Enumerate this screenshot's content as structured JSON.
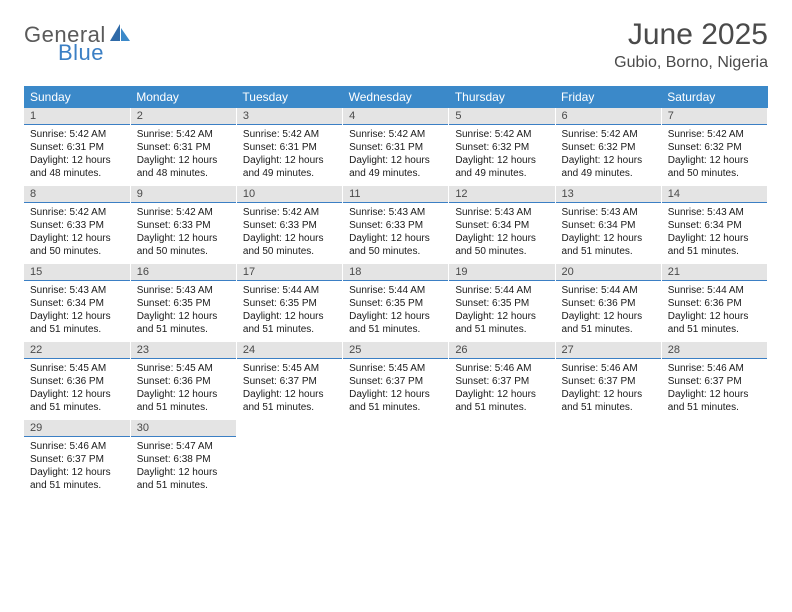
{
  "logo": {
    "general": "General",
    "blue": "Blue"
  },
  "title": "June 2025",
  "location": "Gubio, Borno, Nigeria",
  "colors": {
    "header_bg": "#3b89c9",
    "header_text": "#ffffff",
    "daynum_bg": "#e4e4e4",
    "daynum_border": "#3b7fc4",
    "text": "#1a1a1a",
    "logo_gray": "#5a5a5a",
    "logo_blue": "#3b7fc4"
  },
  "fonts": {
    "title_size": 30,
    "location_size": 16,
    "header_size": 12,
    "body_size": 10
  },
  "weekdays": [
    "Sunday",
    "Monday",
    "Tuesday",
    "Wednesday",
    "Thursday",
    "Friday",
    "Saturday"
  ],
  "grid": {
    "rows": 5,
    "cols": 7,
    "first_day_col": 0,
    "days_in_month": 30
  },
  "days": [
    {
      "n": "1",
      "sunrise": "5:42 AM",
      "sunset": "6:31 PM",
      "daylight": "12 hours and 48 minutes."
    },
    {
      "n": "2",
      "sunrise": "5:42 AM",
      "sunset": "6:31 PM",
      "daylight": "12 hours and 48 minutes."
    },
    {
      "n": "3",
      "sunrise": "5:42 AM",
      "sunset": "6:31 PM",
      "daylight": "12 hours and 49 minutes."
    },
    {
      "n": "4",
      "sunrise": "5:42 AM",
      "sunset": "6:31 PM",
      "daylight": "12 hours and 49 minutes."
    },
    {
      "n": "5",
      "sunrise": "5:42 AM",
      "sunset": "6:32 PM",
      "daylight": "12 hours and 49 minutes."
    },
    {
      "n": "6",
      "sunrise": "5:42 AM",
      "sunset": "6:32 PM",
      "daylight": "12 hours and 49 minutes."
    },
    {
      "n": "7",
      "sunrise": "5:42 AM",
      "sunset": "6:32 PM",
      "daylight": "12 hours and 50 minutes."
    },
    {
      "n": "8",
      "sunrise": "5:42 AM",
      "sunset": "6:33 PM",
      "daylight": "12 hours and 50 minutes."
    },
    {
      "n": "9",
      "sunrise": "5:42 AM",
      "sunset": "6:33 PM",
      "daylight": "12 hours and 50 minutes."
    },
    {
      "n": "10",
      "sunrise": "5:42 AM",
      "sunset": "6:33 PM",
      "daylight": "12 hours and 50 minutes."
    },
    {
      "n": "11",
      "sunrise": "5:43 AM",
      "sunset": "6:33 PM",
      "daylight": "12 hours and 50 minutes."
    },
    {
      "n": "12",
      "sunrise": "5:43 AM",
      "sunset": "6:34 PM",
      "daylight": "12 hours and 50 minutes."
    },
    {
      "n": "13",
      "sunrise": "5:43 AM",
      "sunset": "6:34 PM",
      "daylight": "12 hours and 51 minutes."
    },
    {
      "n": "14",
      "sunrise": "5:43 AM",
      "sunset": "6:34 PM",
      "daylight": "12 hours and 51 minutes."
    },
    {
      "n": "15",
      "sunrise": "5:43 AM",
      "sunset": "6:34 PM",
      "daylight": "12 hours and 51 minutes."
    },
    {
      "n": "16",
      "sunrise": "5:43 AM",
      "sunset": "6:35 PM",
      "daylight": "12 hours and 51 minutes."
    },
    {
      "n": "17",
      "sunrise": "5:44 AM",
      "sunset": "6:35 PM",
      "daylight": "12 hours and 51 minutes."
    },
    {
      "n": "18",
      "sunrise": "5:44 AM",
      "sunset": "6:35 PM",
      "daylight": "12 hours and 51 minutes."
    },
    {
      "n": "19",
      "sunrise": "5:44 AM",
      "sunset": "6:35 PM",
      "daylight": "12 hours and 51 minutes."
    },
    {
      "n": "20",
      "sunrise": "5:44 AM",
      "sunset": "6:36 PM",
      "daylight": "12 hours and 51 minutes."
    },
    {
      "n": "21",
      "sunrise": "5:44 AM",
      "sunset": "6:36 PM",
      "daylight": "12 hours and 51 minutes."
    },
    {
      "n": "22",
      "sunrise": "5:45 AM",
      "sunset": "6:36 PM",
      "daylight": "12 hours and 51 minutes."
    },
    {
      "n": "23",
      "sunrise": "5:45 AM",
      "sunset": "6:36 PM",
      "daylight": "12 hours and 51 minutes."
    },
    {
      "n": "24",
      "sunrise": "5:45 AM",
      "sunset": "6:37 PM",
      "daylight": "12 hours and 51 minutes."
    },
    {
      "n": "25",
      "sunrise": "5:45 AM",
      "sunset": "6:37 PM",
      "daylight": "12 hours and 51 minutes."
    },
    {
      "n": "26",
      "sunrise": "5:46 AM",
      "sunset": "6:37 PM",
      "daylight": "12 hours and 51 minutes."
    },
    {
      "n": "27",
      "sunrise": "5:46 AM",
      "sunset": "6:37 PM",
      "daylight": "12 hours and 51 minutes."
    },
    {
      "n": "28",
      "sunrise": "5:46 AM",
      "sunset": "6:37 PM",
      "daylight": "12 hours and 51 minutes."
    },
    {
      "n": "29",
      "sunrise": "5:46 AM",
      "sunset": "6:37 PM",
      "daylight": "12 hours and 51 minutes."
    },
    {
      "n": "30",
      "sunrise": "5:47 AM",
      "sunset": "6:38 PM",
      "daylight": "12 hours and 51 minutes."
    }
  ],
  "labels": {
    "sunrise": "Sunrise:",
    "sunset": "Sunset:",
    "daylight": "Daylight:"
  }
}
